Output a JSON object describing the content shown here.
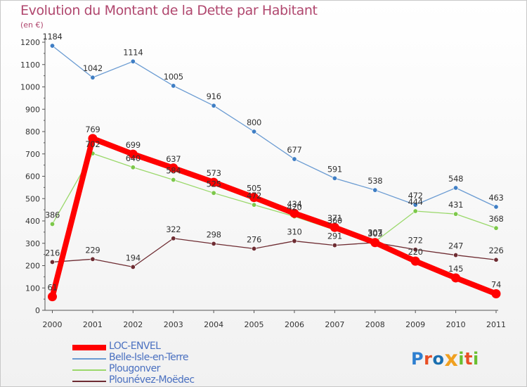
{
  "page": {
    "title": "Evolution du Montant de la Dette par Habitant",
    "subtitle": "(en €)"
  },
  "colors": {
    "title": "#b0476e",
    "axis": "#555555",
    "legend_text": "#4a70c0"
  },
  "logo": {
    "text": "Proxiti",
    "letter_colors": [
      "#2e7fd0",
      "#e84e24",
      "#1a6fb0",
      "#f0a020",
      "#6abf30",
      "#e84e24",
      "#6abf30"
    ]
  },
  "chart_data": {
    "type": "line",
    "title": "Evolution du Montant de la Dette par Habitant",
    "ylabel": "(en €)",
    "xlabel": "",
    "x": [
      "2000",
      "2001",
      "2002",
      "2003",
      "2004",
      "2005",
      "2006",
      "2007",
      "2008",
      "2009",
      "2010",
      "2011"
    ],
    "ylim": [
      0,
      1200
    ],
    "yticks": [
      0,
      100,
      200,
      300,
      400,
      500,
      600,
      700,
      800,
      900,
      1000,
      1100,
      1200
    ],
    "grid": false,
    "legend_position": "bottom-left",
    "series": [
      {
        "name": "Belle-Isle-en-Terre",
        "color": "#6a9bd2",
        "point_color": "#3f7ec4",
        "values": [
          1184,
          1042,
          1114,
          1005,
          916,
          800,
          677,
          591,
          538,
          472,
          548,
          463
        ]
      },
      {
        "name": "Plougonver",
        "color": "#9ad86a",
        "point_color": "#7cc84a",
        "values": [
          386,
          702,
          640,
          584,
          525,
          472,
          420,
          360,
          307,
          444,
          431,
          368
        ]
      },
      {
        "name": "Plounévez-Moëdec",
        "color": "#6e2c32",
        "point_color": "#6e2c32",
        "values": [
          216,
          229,
          194,
          322,
          298,
          276,
          310,
          291,
          303,
          272,
          247,
          226
        ]
      },
      {
        "name": "LOC-ENVEL",
        "color": "#ff0000",
        "point_color": "#ff0000",
        "values": [
          61,
          769,
          699,
          637,
          573,
          505,
          434,
          371,
          303,
          220,
          145,
          74
        ],
        "highlight": true
      }
    ],
    "labels": {
      "Belle-Isle-en-Terre": [
        "1184",
        "1042",
        "1114",
        "1005",
        "916",
        "800",
        "677",
        "591",
        "538",
        "472",
        "548",
        "463"
      ],
      "Plougonver": [
        "386",
        "702",
        "640",
        "584",
        "525",
        "472",
        "420",
        "360",
        "307",
        "444",
        "431",
        "368"
      ],
      "Plounévez-Moëdec": [
        "216",
        "229",
        "194",
        "322",
        "298",
        "276",
        "310",
        "291",
        "303",
        "272",
        "247",
        "226"
      ],
      "LOC-ENVEL": [
        "61",
        "769",
        "699",
        "637",
        "573",
        "505",
        "434",
        "371",
        "303",
        "220",
        "145",
        "74"
      ]
    }
  },
  "legend": {
    "items": [
      {
        "label": "LOC-ENVEL",
        "color": "#ff0000",
        "thick": true
      },
      {
        "label": "Belle-Isle-en-Terre",
        "color": "#6a9bd2",
        "thick": false
      },
      {
        "label": "Plougonver",
        "color": "#9ad86a",
        "thick": false
      },
      {
        "label": "Plounévez-Moëdec",
        "color": "#6e2c32",
        "thick": false
      }
    ]
  }
}
